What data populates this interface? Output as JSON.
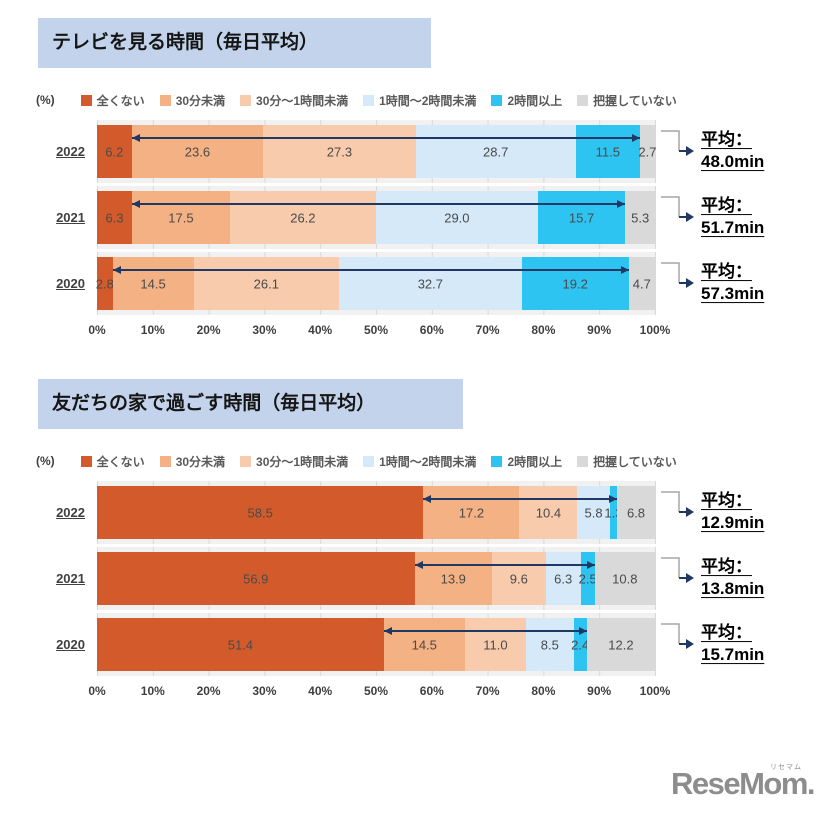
{
  "strings": {
    "percent_unit": "(%)",
    "avg_prefix": "平均："
  },
  "legend": {
    "items": [
      "全くない",
      "30分未満",
      "30分〜1時間未満",
      "1時間〜2時間未満",
      "2時間以上",
      "把握していない"
    ],
    "colors": [
      "#d35b2b",
      "#f4b183",
      "#f8cbad",
      "#d6e9f8",
      "#2ec4f1",
      "#d9d9d9"
    ]
  },
  "axis_ticks": [
    "0%",
    "10%",
    "20%",
    "30%",
    "40%",
    "50%",
    "60%",
    "70%",
    "80%",
    "90%",
    "100%"
  ],
  "colors": {
    "title_bg": "#c2d3eb",
    "arrow": "#1f3864",
    "elbow": "#a6a6a6",
    "grid": "#d9d9d9",
    "plot_band": "#f1f1f1",
    "bar_label": "#4a4a4a",
    "logo": "#8d8d8d"
  },
  "logo": {
    "text": "ReseMom.",
    "ruby": "リセマム"
  },
  "chart_data": [
    {
      "type": "bar",
      "orientation": "horizontal",
      "stacked": true,
      "title": "テレビを見る時間（毎日平均）",
      "unit": "%",
      "xlim": [
        0,
        100
      ],
      "grid": true,
      "legend_position": "top",
      "categories": [
        "2022",
        "2021",
        "2020"
      ],
      "series": [
        {
          "name": "全くない",
          "values": [
            6.2,
            6.3,
            2.8
          ]
        },
        {
          "name": "30分未満",
          "values": [
            23.6,
            17.5,
            14.5
          ]
        },
        {
          "name": "30分〜1時間未満",
          "values": [
            27.3,
            26.2,
            26.1
          ]
        },
        {
          "name": "1時間〜2時間未満",
          "values": [
            28.7,
            29.0,
            32.7
          ]
        },
        {
          "name": "2時間以上",
          "values": [
            11.5,
            15.7,
            19.2
          ]
        },
        {
          "name": "把握していない",
          "values": [
            2.7,
            5.3,
            4.7
          ]
        }
      ],
      "averages": [
        "48.0min",
        "51.7min",
        "57.3min"
      ]
    },
    {
      "type": "bar",
      "orientation": "horizontal",
      "stacked": true,
      "title": "友だちの家で過ごす時間（毎日平均）",
      "unit": "%",
      "xlim": [
        0,
        100
      ],
      "grid": true,
      "legend_position": "top",
      "categories": [
        "2022",
        "2021",
        "2020"
      ],
      "series": [
        {
          "name": "全くない",
          "values": [
            58.5,
            56.9,
            51.4
          ]
        },
        {
          "name": "30分未満",
          "values": [
            17.2,
            13.9,
            14.5
          ]
        },
        {
          "name": "30分〜1時間未満",
          "values": [
            10.4,
            9.6,
            11.0
          ]
        },
        {
          "name": "1時間〜2時間未満",
          "values": [
            5.8,
            6.3,
            8.5
          ]
        },
        {
          "name": "2時間以上",
          "values": [
            1.3,
            2.5,
            2.4
          ]
        },
        {
          "name": "把握していない",
          "values": [
            6.8,
            10.8,
            12.2
          ]
        }
      ],
      "averages": [
        "12.9min",
        "13.8min",
        "15.7min"
      ]
    }
  ]
}
